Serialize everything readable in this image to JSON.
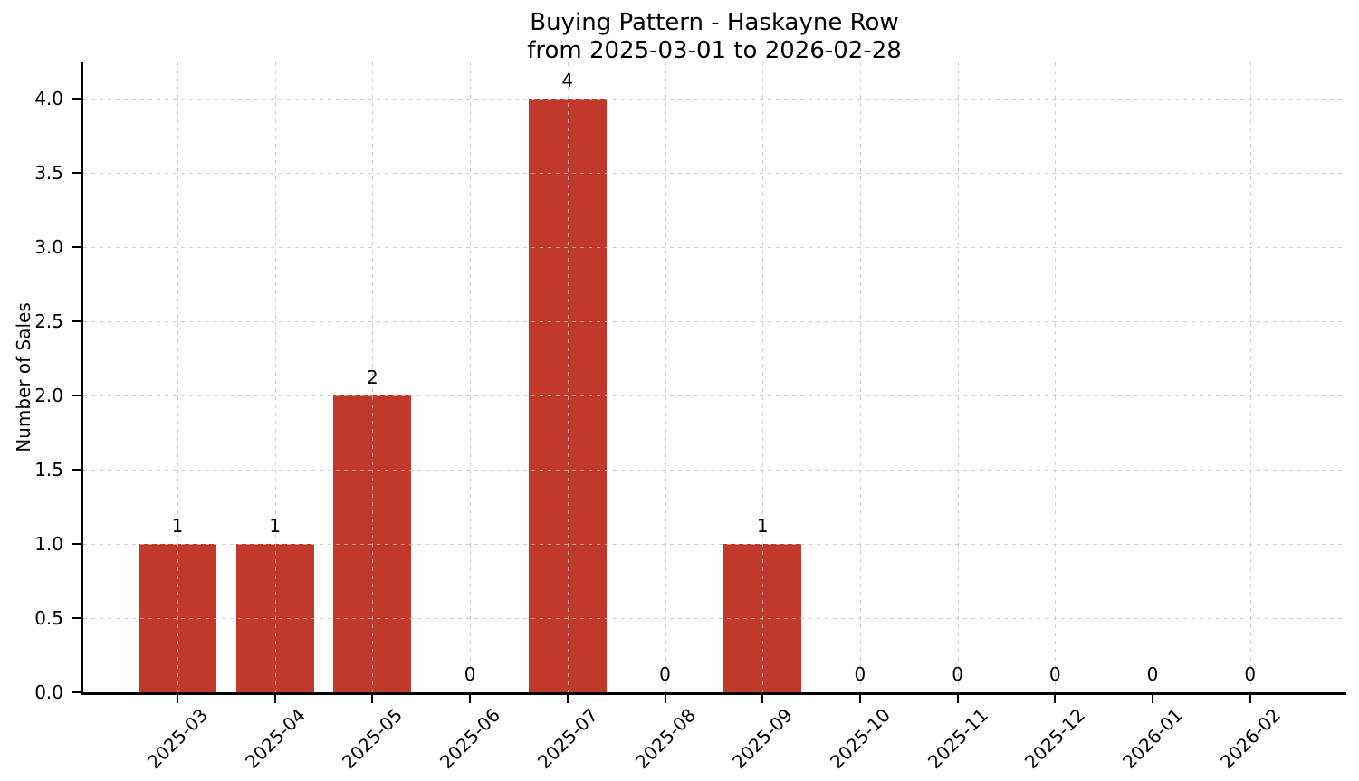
{
  "chart_data": {
    "type": "bar",
    "title": "Buying Pattern - Haskayne Row",
    "subtitle": "from 2025-03-01 to 2026-02-28",
    "ylabel": "Number of Sales",
    "xlabel": "",
    "categories": [
      "2025-03",
      "2025-04",
      "2025-05",
      "2025-06",
      "2025-07",
      "2025-08",
      "2025-09",
      "2025-10",
      "2025-11",
      "2025-12",
      "2026-01",
      "2026-02"
    ],
    "values": [
      1,
      1,
      2,
      0,
      4,
      0,
      1,
      0,
      0,
      0,
      0,
      0
    ],
    "bar_value_labels": [
      "1",
      "1",
      "2",
      "0",
      "4",
      "0",
      "1",
      "0",
      "0",
      "0",
      "0",
      "0"
    ],
    "yticks": [
      0.0,
      0.5,
      1.0,
      1.5,
      2.0,
      2.5,
      3.0,
      3.5,
      4.0
    ],
    "ytick_labels": [
      "0.0",
      "0.5",
      "1.0",
      "1.5",
      "2.0",
      "2.5",
      "3.0",
      "3.5",
      "4.0"
    ],
    "ylim": [
      0,
      4.25
    ],
    "x_tick_rotation": 45,
    "grid": true,
    "grid_style": "dashed",
    "legend": "none",
    "bar_color": "#c0392b",
    "grid_color": "rgba(190,190,190,0.75)",
    "axis_color": "#000000",
    "text_color": "#000000",
    "background_color": "#ffffff"
  }
}
